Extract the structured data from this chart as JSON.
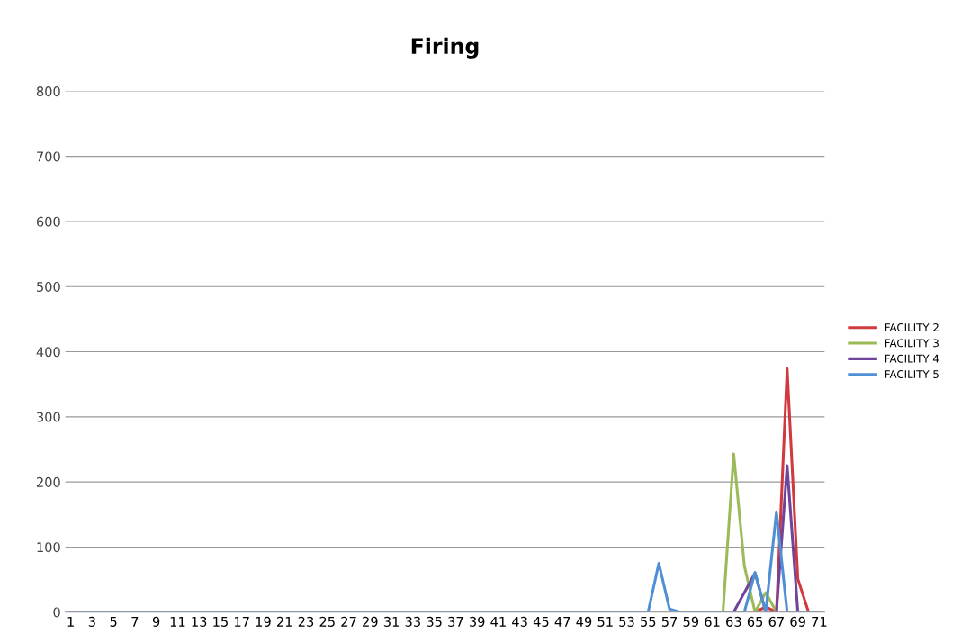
{
  "chart_data": {
    "type": "line",
    "title": "Firing",
    "categories": [
      "1",
      null,
      "3",
      null,
      "5",
      null,
      "7",
      null,
      "9",
      null,
      "11",
      null,
      "13",
      null,
      "15",
      null,
      "17",
      null,
      "19",
      null,
      "21",
      null,
      "23",
      null,
      "25",
      null,
      "27",
      null,
      "29",
      null,
      "31",
      null,
      "33",
      null,
      "35",
      null,
      "37",
      null,
      "39",
      null,
      "41",
      null,
      "43",
      null,
      "45",
      null,
      "47",
      null,
      "49",
      null,
      "51",
      null,
      "53",
      null,
      "55",
      null,
      "57",
      null,
      "59",
      null,
      "61",
      null,
      "63",
      null,
      "65",
      null,
      "67",
      null,
      "69",
      null,
      "71"
    ],
    "series": [
      {
        "name": "FACILITY 2",
        "color": "#d03a3f",
        "values": [
          null,
          null,
          null,
          null,
          null,
          null,
          null,
          null,
          null,
          null,
          null,
          null,
          null,
          null,
          null,
          null,
          null,
          null,
          null,
          null,
          null,
          null,
          null,
          null,
          null,
          null,
          null,
          null,
          null,
          null,
          null,
          null,
          null,
          null,
          null,
          null,
          null,
          null,
          null,
          null,
          null,
          null,
          null,
          null,
          null,
          null,
          null,
          null,
          null,
          null,
          null,
          null,
          null,
          null,
          null,
          null,
          null,
          null,
          null,
          null,
          null,
          null,
          null,
          null,
          0,
          8,
          0,
          374,
          51,
          0,
          null
        ]
      },
      {
        "name": "FACILITY 3",
        "color": "#9bbb59",
        "values": [
          null,
          null,
          null,
          null,
          null,
          null,
          null,
          null,
          null,
          null,
          null,
          null,
          null,
          null,
          null,
          null,
          null,
          null,
          null,
          null,
          null,
          null,
          null,
          null,
          null,
          null,
          null,
          null,
          null,
          null,
          null,
          null,
          null,
          null,
          null,
          null,
          null,
          null,
          null,
          null,
          null,
          null,
          null,
          null,
          null,
          null,
          null,
          null,
          null,
          null,
          null,
          null,
          null,
          null,
          null,
          null,
          null,
          null,
          null,
          null,
          null,
          0,
          243,
          71,
          0,
          30,
          0,
          null,
          null,
          null,
          null
        ]
      },
      {
        "name": "FACILITY 4",
        "color": "#71449c",
        "values": [
          null,
          null,
          null,
          null,
          null,
          null,
          null,
          null,
          null,
          null,
          null,
          null,
          null,
          null,
          null,
          null,
          null,
          null,
          null,
          null,
          null,
          null,
          null,
          null,
          null,
          null,
          null,
          null,
          null,
          null,
          null,
          null,
          null,
          null,
          null,
          null,
          null,
          null,
          null,
          null,
          null,
          null,
          null,
          null,
          null,
          null,
          null,
          null,
          null,
          null,
          null,
          null,
          null,
          null,
          null,
          null,
          null,
          null,
          null,
          null,
          null,
          null,
          0,
          30,
          60,
          0,
          0,
          225,
          0,
          null,
          null
        ]
      },
      {
        "name": "FACILITY 5",
        "color": "#4f8fd4",
        "values": [
          0,
          0,
          0,
          0,
          0,
          0,
          0,
          0,
          0,
          0,
          0,
          0,
          0,
          0,
          0,
          0,
          0,
          0,
          0,
          0,
          0,
          0,
          0,
          0,
          0,
          0,
          0,
          0,
          0,
          0,
          0,
          0,
          0,
          0,
          0,
          0,
          0,
          0,
          0,
          0,
          0,
          0,
          0,
          0,
          0,
          0,
          0,
          0,
          0,
          0,
          0,
          0,
          0,
          0,
          0,
          75,
          5,
          0,
          0,
          0,
          0,
          0,
          0,
          0,
          61,
          0,
          154,
          0,
          0,
          0,
          0
        ]
      }
    ],
    "ylim": [
      0,
      800
    ],
    "yticks": [
      0,
      100,
      200,
      300,
      400,
      500,
      600,
      700,
      800
    ],
    "grid": "y",
    "legend": "right",
    "marker": "none",
    "line_style": "solid"
  }
}
